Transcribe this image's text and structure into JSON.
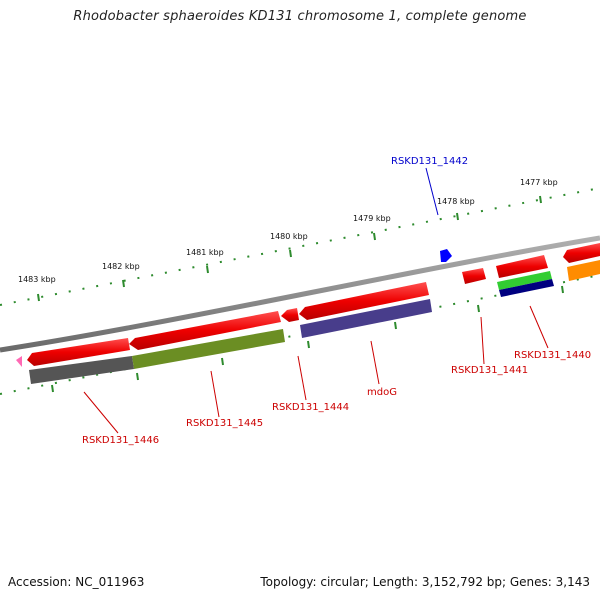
{
  "title": "Rhodobacter sphaeroides KD131 chromosome 1, complete genome",
  "footer": {
    "accession": "Accession: NC_011963",
    "topology": "Topology: circular; Length: 3,152,792 bp; Genes: 3,143"
  },
  "ruler": [
    "1477 kbp",
    "1478 kbp",
    "1479 kbp",
    "1480 kbp",
    "1481 kbp",
    "1482 kbp",
    "1483 kbp"
  ],
  "genes": [
    {
      "label": "RSKD131_1442",
      "color": "#0000cc"
    },
    {
      "label": "RSKD131_1440",
      "color": "#cc0000"
    },
    {
      "label": "RSKD131_1441",
      "color": "#cc0000"
    },
    {
      "label": "mdoG",
      "color": "#cc0000"
    },
    {
      "label": "RSKD131_1444",
      "color": "#cc0000"
    },
    {
      "label": "RSKD131_1445",
      "color": "#cc0000"
    },
    {
      "label": "RSKD131_1446",
      "color": "#cc0000"
    }
  ],
  "colors": {
    "backbone": "#8a8a8a",
    "ruler": "#2e8b2e",
    "cds_red": "#ee0000",
    "cog_gray": "#555555",
    "cog_olive": "#6b8e23",
    "cog_purple": "#483d8b",
    "cog_green": "#32cd32",
    "cog_navy": "#000080",
    "cog_orange": "#ff8c00",
    "marker_blue": "#0000ff",
    "marker_pink": "#ff69b4"
  }
}
